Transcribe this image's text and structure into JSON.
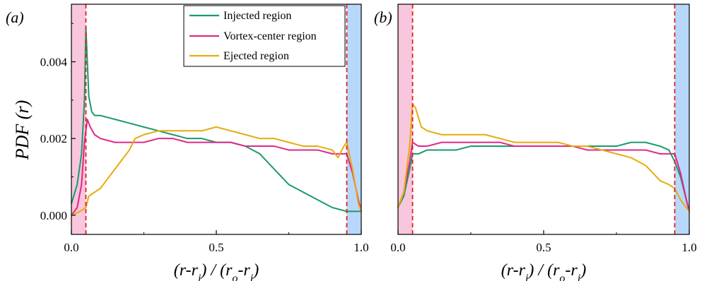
{
  "colors": {
    "injected": "#1a9a6c",
    "vortex": "#e0278a",
    "ejected": "#e6ac0c",
    "inner_band": "#f8c6dd",
    "outer_band": "#b8d8fb",
    "boundary_line": "#e02020"
  },
  "chart_data": [
    {
      "panel_label": "(a)",
      "type": "line",
      "xlabel": "(r-r_i) / (r_o-r_i)",
      "ylabel": "PDF (r)",
      "xlim": [
        0.0,
        1.0
      ],
      "ylim": [
        -0.0005,
        0.0055
      ],
      "x_ticks": [
        "0.0",
        "0.5",
        "1.0"
      ],
      "y_ticks": [
        "0.000",
        "0.002",
        "0.004"
      ],
      "legend_position": "top-right",
      "shaded_regions": [
        [
          0.0,
          0.05
        ],
        [
          0.95,
          1.0
        ]
      ],
      "boundary_lines": [
        0.05,
        0.95
      ],
      "series": [
        {
          "name": "Injected region",
          "color_key": "injected",
          "x": [
            0.0,
            0.02,
            0.035,
            0.045,
            0.05,
            0.055,
            0.06,
            0.07,
            0.08,
            0.1,
            0.15,
            0.2,
            0.25,
            0.3,
            0.35,
            0.4,
            0.45,
            0.5,
            0.55,
            0.6,
            0.65,
            0.7,
            0.75,
            0.8,
            0.85,
            0.9,
            0.95,
            0.97,
            0.99,
            1.0
          ],
          "y": [
            0.0003,
            0.0008,
            0.0016,
            0.003,
            0.0049,
            0.004,
            0.0031,
            0.0027,
            0.0026,
            0.0026,
            0.0025,
            0.0024,
            0.0023,
            0.0022,
            0.0021,
            0.002,
            0.002,
            0.0019,
            0.0019,
            0.0018,
            0.0016,
            0.0012,
            0.0008,
            0.0006,
            0.0004,
            0.0002,
            0.0001,
            0.0001,
            0.0001,
            0.0001
          ]
        },
        {
          "name": "Vortex-center region",
          "color_key": "vortex",
          "x": [
            0.0,
            0.02,
            0.035,
            0.045,
            0.055,
            0.065,
            0.08,
            0.1,
            0.15,
            0.2,
            0.25,
            0.3,
            0.35,
            0.4,
            0.45,
            0.5,
            0.55,
            0.6,
            0.65,
            0.7,
            0.75,
            0.8,
            0.85,
            0.9,
            0.93,
            0.95,
            0.97,
            0.99,
            1.0
          ],
          "y": [
            0.0,
            0.0002,
            0.0008,
            0.0019,
            0.0025,
            0.0023,
            0.0021,
            0.002,
            0.0019,
            0.0019,
            0.0019,
            0.002,
            0.002,
            0.0019,
            0.0019,
            0.0019,
            0.0019,
            0.0018,
            0.0018,
            0.0018,
            0.0017,
            0.0017,
            0.0017,
            0.0016,
            0.0016,
            0.0016,
            0.0011,
            0.0004,
            0.0001
          ]
        },
        {
          "name": "Ejected region",
          "color_key": "ejected",
          "x": [
            0.0,
            0.03,
            0.05,
            0.06,
            0.08,
            0.1,
            0.12,
            0.15,
            0.2,
            0.22,
            0.25,
            0.3,
            0.35,
            0.4,
            0.45,
            0.5,
            0.55,
            0.6,
            0.65,
            0.7,
            0.75,
            0.8,
            0.85,
            0.9,
            0.92,
            0.94,
            0.95,
            0.97,
            0.99,
            1.0
          ],
          "y": [
            0.0,
            0.0001,
            0.0002,
            0.0005,
            0.0006,
            0.0007,
            0.0009,
            0.0012,
            0.0017,
            0.002,
            0.0021,
            0.0022,
            0.0022,
            0.0022,
            0.0022,
            0.0023,
            0.0022,
            0.0021,
            0.002,
            0.002,
            0.0019,
            0.0018,
            0.0018,
            0.0017,
            0.0015,
            0.0018,
            0.0019,
            0.0012,
            0.0003,
            0.0001
          ]
        }
      ]
    },
    {
      "panel_label": "(b)",
      "type": "line",
      "xlabel": "(r-r_i) / (r_o-r_i)",
      "ylabel": "",
      "xlim": [
        0.0,
        1.0
      ],
      "ylim": [
        -0.0005,
        0.0055
      ],
      "x_ticks": [
        "0.0",
        "0.5",
        "1.0"
      ],
      "y_ticks": [],
      "shaded_regions": [
        [
          0.0,
          0.05
        ],
        [
          0.95,
          1.0
        ]
      ],
      "boundary_lines": [
        0.05,
        0.95
      ],
      "series": [
        {
          "name": "Injected region",
          "color_key": "injected",
          "x": [
            0.0,
            0.02,
            0.04,
            0.05,
            0.07,
            0.1,
            0.15,
            0.2,
            0.25,
            0.3,
            0.35,
            0.4,
            0.45,
            0.5,
            0.55,
            0.6,
            0.65,
            0.7,
            0.75,
            0.8,
            0.85,
            0.9,
            0.93,
            0.95,
            0.97,
            0.99,
            1.0
          ],
          "y": [
            0.0002,
            0.0005,
            0.0012,
            0.0016,
            0.0016,
            0.0017,
            0.0017,
            0.0017,
            0.0018,
            0.0018,
            0.0018,
            0.0018,
            0.0018,
            0.0018,
            0.0018,
            0.0018,
            0.0018,
            0.0018,
            0.0018,
            0.0019,
            0.0019,
            0.0018,
            0.0017,
            0.0014,
            0.001,
            0.0004,
            0.0001
          ]
        },
        {
          "name": "Vortex-center region",
          "color_key": "vortex",
          "x": [
            0.0,
            0.02,
            0.04,
            0.05,
            0.07,
            0.1,
            0.15,
            0.2,
            0.25,
            0.3,
            0.35,
            0.4,
            0.45,
            0.5,
            0.55,
            0.6,
            0.65,
            0.7,
            0.75,
            0.8,
            0.85,
            0.9,
            0.93,
            0.95,
            0.97,
            0.99,
            1.0
          ],
          "y": [
            0.0002,
            0.0006,
            0.0014,
            0.0019,
            0.0018,
            0.0018,
            0.0019,
            0.0019,
            0.0019,
            0.0019,
            0.0019,
            0.0018,
            0.0018,
            0.0018,
            0.0018,
            0.0018,
            0.0017,
            0.0017,
            0.0017,
            0.0017,
            0.0017,
            0.0016,
            0.0016,
            0.0016,
            0.0011,
            0.0004,
            0.0001
          ]
        },
        {
          "name": "Ejected region",
          "color_key": "ejected",
          "x": [
            0.0,
            0.02,
            0.04,
            0.05,
            0.06,
            0.08,
            0.1,
            0.15,
            0.2,
            0.25,
            0.3,
            0.35,
            0.4,
            0.45,
            0.5,
            0.55,
            0.6,
            0.65,
            0.7,
            0.75,
            0.8,
            0.85,
            0.9,
            0.93,
            0.95,
            0.97,
            0.99,
            1.0
          ],
          "y": [
            0.0002,
            0.0006,
            0.0018,
            0.0029,
            0.0028,
            0.0023,
            0.0022,
            0.0021,
            0.0021,
            0.0021,
            0.0021,
            0.002,
            0.0019,
            0.0019,
            0.0019,
            0.0019,
            0.0018,
            0.0018,
            0.0017,
            0.0016,
            0.0015,
            0.0013,
            0.0009,
            0.0008,
            0.0007,
            0.0004,
            0.0002,
            0.0001
          ]
        }
      ]
    }
  ]
}
